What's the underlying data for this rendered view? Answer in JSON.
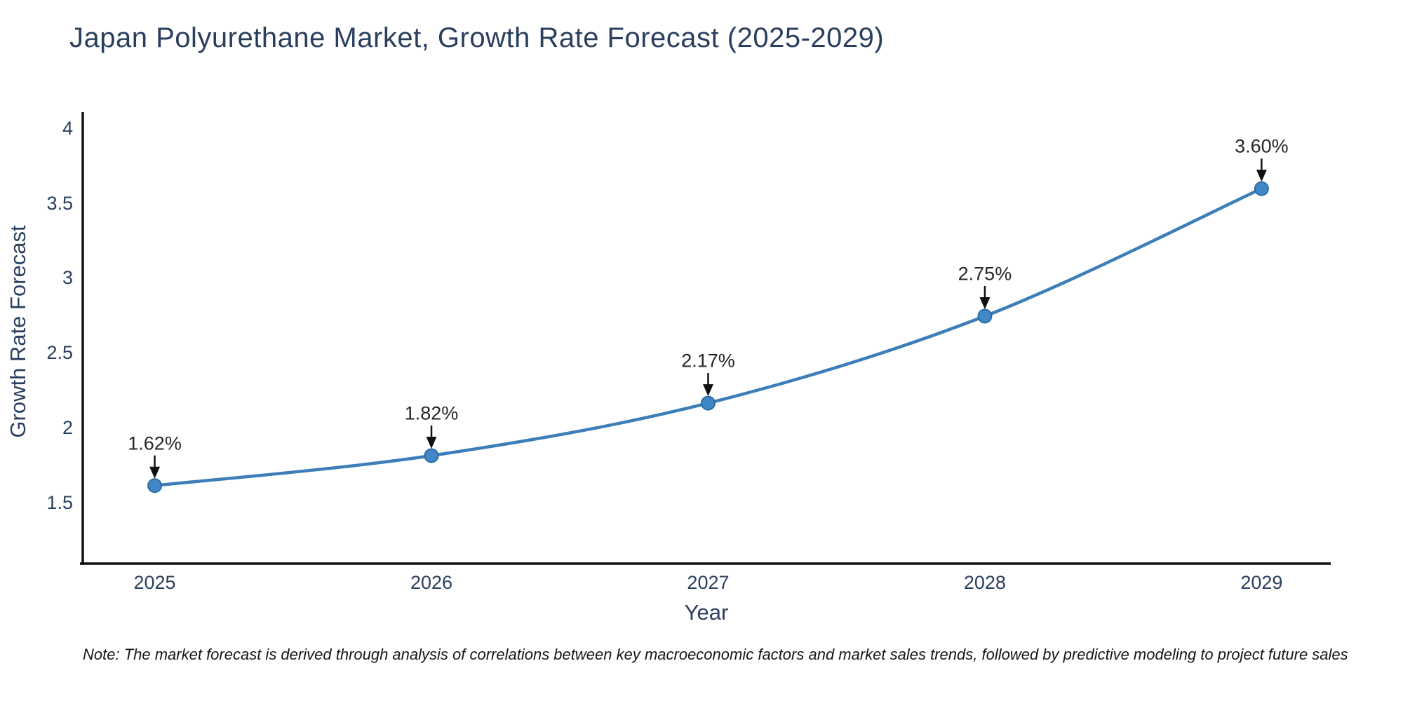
{
  "title": "Japan Polyurethane Market, Growth Rate Forecast (2025-2029)",
  "note": "Note: The market forecast is derived through analysis of correlations between key macroeconomic factors and market sales trends, followed by predictive modeling to project future sales",
  "chart_data": {
    "type": "line",
    "title": "Japan Polyurethane Market, Growth Rate Forecast (2025-2029)",
    "xlabel": "Year",
    "ylabel": "Growth Rate Forecast",
    "x": [
      2025,
      2026,
      2027,
      2028,
      2029
    ],
    "values": [
      1.62,
      1.82,
      2.17,
      2.75,
      3.6
    ],
    "point_labels": [
      "1.62%",
      "1.82%",
      "2.17%",
      "2.75%",
      "3.60%"
    ],
    "xtick_labels": [
      "2025",
      "2026",
      "2027",
      "2028",
      "2029"
    ],
    "yticks": [
      1.5,
      2,
      2.5,
      3,
      3.5,
      4
    ],
    "ytick_labels": [
      "1.5",
      "2",
      "2.5",
      "3",
      "3.5",
      "4"
    ],
    "xlim": [
      2024.74,
      2029.25
    ],
    "ylim": [
      1.1,
      4.11
    ],
    "grid": false,
    "legend": "none",
    "annotation_style": "label-with-down-arrow",
    "colors": {
      "line": "#3d7eb9",
      "marker_fill": "#4287c5",
      "marker_edge": "#2b6ca8",
      "axis": "#111111",
      "tick_text": "#2a3f5f",
      "annotation_text": "#262626",
      "arrow": "#111111",
      "note_text": "#161616",
      "background": "#ffffff"
    }
  }
}
